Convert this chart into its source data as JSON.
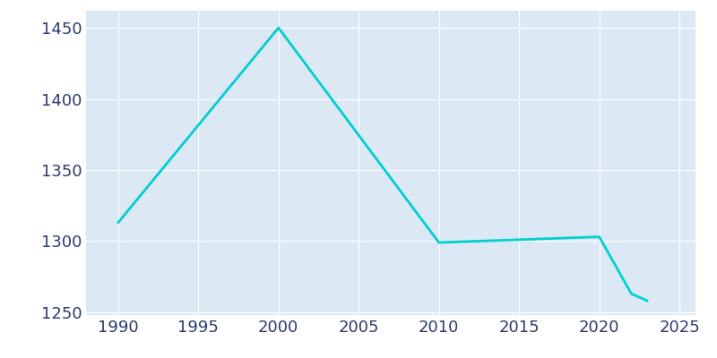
{
  "years": [
    1990,
    2000,
    2010,
    2020,
    2022,
    2023
  ],
  "population": [
    1313,
    1450,
    1299,
    1303,
    1263,
    1258
  ],
  "line_color": "#00CED1",
  "axes_background_color": "#dce9f5",
  "figure_background": "#ffffff",
  "xlim": [
    1988,
    2026
  ],
  "ylim": [
    1248,
    1462
  ],
  "xticks": [
    1990,
    1995,
    2000,
    2005,
    2010,
    2015,
    2020,
    2025
  ],
  "yticks": [
    1250,
    1300,
    1350,
    1400,
    1450
  ],
  "tick_label_color": "#2b3a6e",
  "grid_color": "#ffffff",
  "line_width": 2.0,
  "tick_fontsize": 13
}
